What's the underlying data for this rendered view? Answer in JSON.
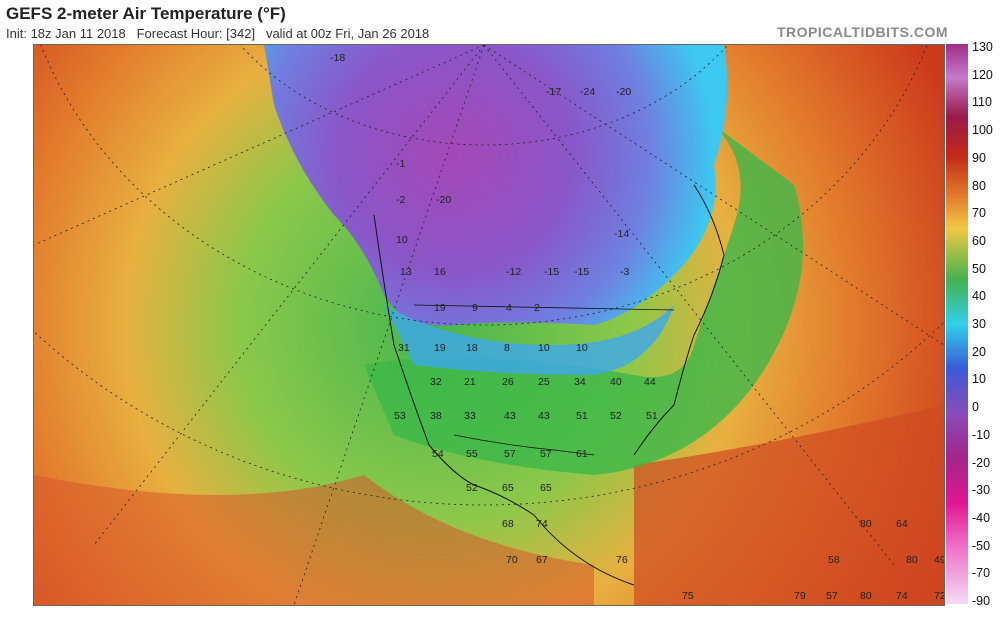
{
  "header": {
    "title": "GEFS 2-meter Air Temperature (°F)",
    "init": "Init: 18z Jan 11 2018",
    "forecast_hour": "Forecast Hour: [342]",
    "valid": "valid at 00z Fri, Jan 26 2018",
    "brand": "TROPICALTIDBITS.COM"
  },
  "legend": {
    "ticks": [
      "130",
      "120",
      "110",
      "100",
      "90",
      "80",
      "70",
      "60",
      "50",
      "40",
      "30",
      "20",
      "10",
      "0",
      "-10",
      "-20",
      "-30",
      "-40",
      "-50",
      "-70",
      "-90"
    ]
  },
  "map": {
    "labels": [
      "-18",
      "-17",
      "-24",
      "-20",
      "-1",
      "-2",
      "-20",
      "10",
      "-14",
      "13",
      "16",
      "-12",
      "-15",
      "-15",
      "-3",
      "19",
      "9",
      "4",
      "2",
      "31",
      "19",
      "18",
      "8",
      "10",
      "10",
      "32",
      "21",
      "26",
      "25",
      "34",
      "40",
      "44",
      "53",
      "38",
      "33",
      "43",
      "43",
      "51",
      "52",
      "51",
      "54",
      "55",
      "57",
      "57",
      "61",
      "52",
      "65",
      "65",
      "68",
      "74",
      "70",
      "67",
      "76",
      "80",
      "64",
      "80",
      "58",
      "49",
      "79",
      "57",
      "80",
      "74",
      "72",
      "75"
    ]
  },
  "colors": {
    "frame": "#666666",
    "cold_purple": "#8e4ab8",
    "cyan": "#40c8f0",
    "green": "#40b850",
    "orange": "#e07028",
    "red": "#c83018"
  }
}
